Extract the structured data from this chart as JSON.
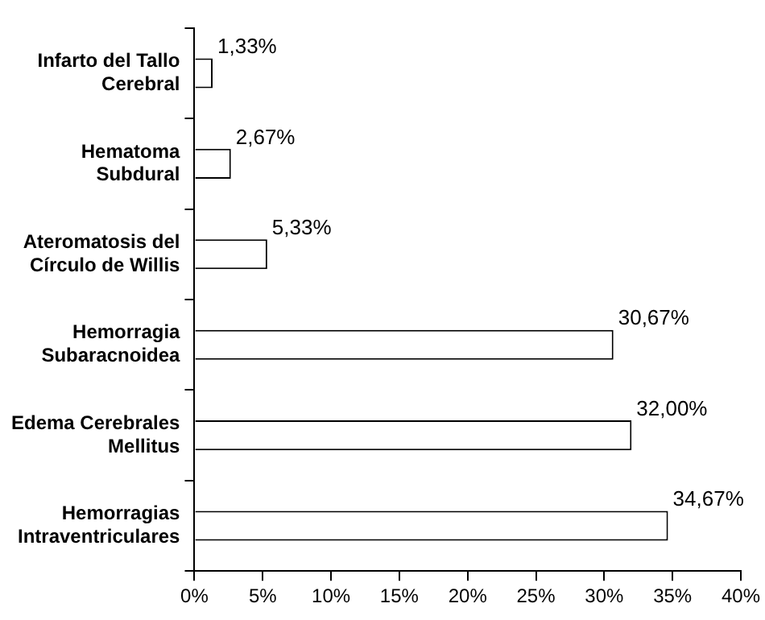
{
  "chart_data": {
    "type": "bar",
    "orientation": "horizontal",
    "categories": [
      "Infarto del Tallo\nCerebral",
      "Hematoma\nSubdural",
      "Ateromatosis del\nCírculo de Willis",
      "Hemorragia\nSubaracnoidea",
      "Edema Cerebrales\nMellitus",
      "Hemorragias\nIntraventriculares"
    ],
    "values": [
      1.33,
      2.67,
      5.33,
      30.67,
      32.0,
      34.67
    ],
    "value_labels": [
      "1,33%",
      "2,67%",
      "5,33%",
      "30,67%",
      "32,00%",
      "34,67%"
    ],
    "color": "#ffffff",
    "xlim": [
      0,
      40
    ],
    "xticks": [
      {
        "value": 0,
        "label": "0%"
      },
      {
        "value": 5,
        "label": "5%"
      },
      {
        "value": 10,
        "label": "10%"
      },
      {
        "value": 15,
        "label": "15%"
      },
      {
        "value": 20,
        "label": "20%"
      },
      {
        "value": 25,
        "label": "25%"
      },
      {
        "value": 30,
        "label": "30%"
      },
      {
        "value": 35,
        "label": "35%"
      },
      {
        "value": 40,
        "label": "40%"
      }
    ],
    "grid": false,
    "legend": false
  }
}
